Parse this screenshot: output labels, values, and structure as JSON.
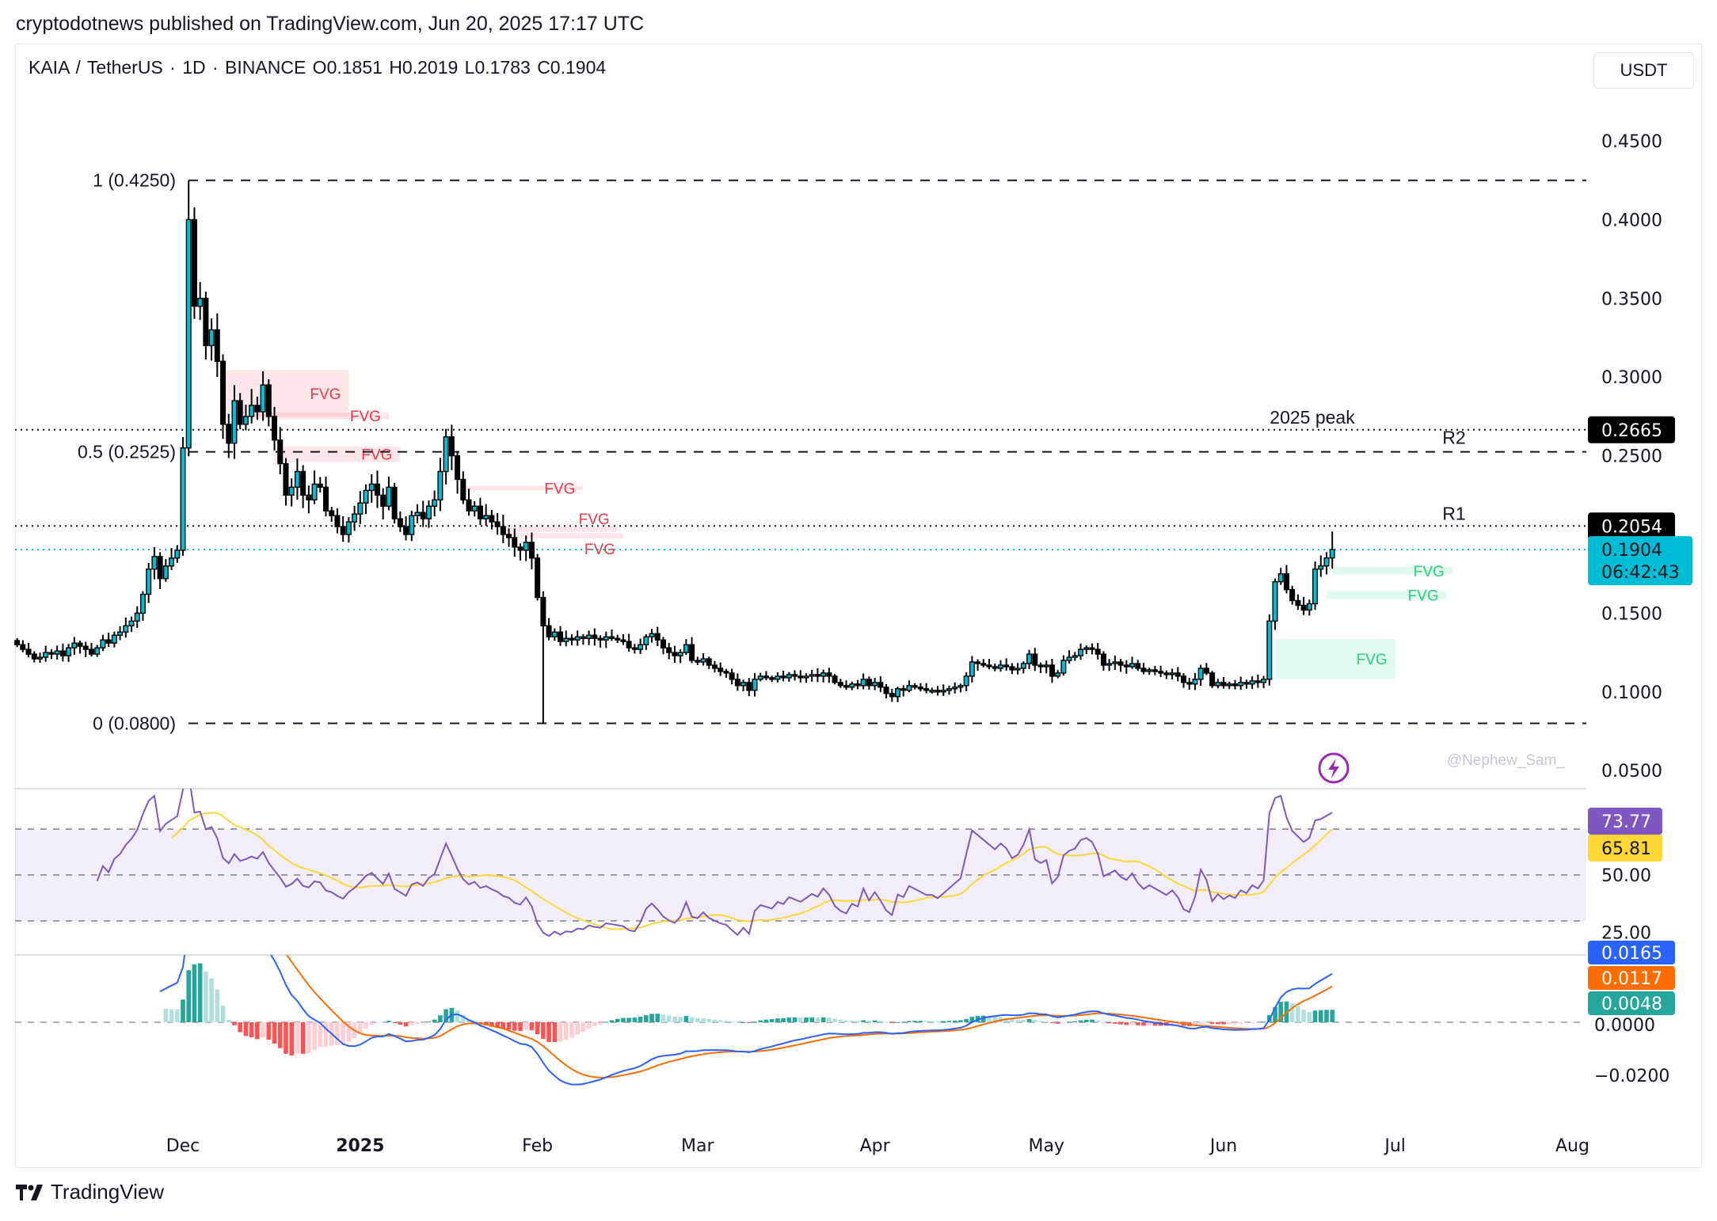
{
  "header": {
    "published": "cryptodotnews published on TradingView.com, Jun 20, 2025 17:17 UTC",
    "symbol": "KAIA / TetherUS · 1D · BINANCE  O0.1851  H0.2019  L0.1783  C0.1904",
    "currency_button": "USDT"
  },
  "footer": {
    "brand": "TradingView"
  },
  "watermark": "@Nephew_Sam_",
  "colors": {
    "up": "#00bcd4",
    "down": "#000000",
    "fvg_red": "#f23645",
    "fvg_green": "#22d37a",
    "rsi": "#7e57c2",
    "rsi_ma": "#fdd835",
    "macd": "#2962ff",
    "signal": "#ff6d00",
    "hist": "#26a69a"
  },
  "chart_data": {
    "type": "candlestick",
    "start_date": "2024-11-02",
    "closes": [
      0.13,
      0.127,
      0.124,
      0.121,
      0.122,
      0.125,
      0.124,
      0.126,
      0.123,
      0.128,
      0.131,
      0.129,
      0.127,
      0.124,
      0.128,
      0.133,
      0.131,
      0.136,
      0.138,
      0.142,
      0.145,
      0.15,
      0.162,
      0.178,
      0.186,
      0.172,
      0.18,
      0.185,
      0.19,
      0.255,
      0.4,
      0.345,
      0.35,
      0.32,
      0.33,
      0.31,
      0.27,
      0.258,
      0.285,
      0.27,
      0.275,
      0.282,
      0.278,
      0.295,
      0.275,
      0.26,
      0.245,
      0.225,
      0.23,
      0.24,
      0.225,
      0.222,
      0.232,
      0.23,
      0.215,
      0.212,
      0.205,
      0.2,
      0.208,
      0.213,
      0.22,
      0.228,
      0.232,
      0.225,
      0.218,
      0.23,
      0.21,
      0.205,
      0.2,
      0.212,
      0.214,
      0.21,
      0.218,
      0.222,
      0.24,
      0.262,
      0.25,
      0.235,
      0.222,
      0.215,
      0.218,
      0.21,
      0.212,
      0.208,
      0.205,
      0.2,
      0.198,
      0.192,
      0.19,
      0.195,
      0.185,
      0.16,
      0.142,
      0.135,
      0.138,
      0.132,
      0.134,
      0.133,
      0.135,
      0.134,
      0.136,
      0.134,
      0.133,
      0.135,
      0.134,
      0.133,
      0.132,
      0.128,
      0.127,
      0.13,
      0.135,
      0.137,
      0.133,
      0.128,
      0.125,
      0.123,
      0.125,
      0.13,
      0.12,
      0.119,
      0.121,
      0.117,
      0.115,
      0.113,
      0.112,
      0.108,
      0.104,
      0.106,
      0.101,
      0.108,
      0.11,
      0.109,
      0.108,
      0.11,
      0.109,
      0.111,
      0.11,
      0.109,
      0.11,
      0.111,
      0.11,
      0.112,
      0.11,
      0.106,
      0.104,
      0.103,
      0.105,
      0.104,
      0.108,
      0.104,
      0.106,
      0.103,
      0.099,
      0.097,
      0.102,
      0.101,
      0.104,
      0.103,
      0.102,
      0.101,
      0.101,
      0.1,
      0.101,
      0.102,
      0.103,
      0.104,
      0.11,
      0.119,
      0.118,
      0.117,
      0.116,
      0.115,
      0.117,
      0.116,
      0.114,
      0.115,
      0.118,
      0.124,
      0.117,
      0.116,
      0.117,
      0.11,
      0.112,
      0.12,
      0.122,
      0.123,
      0.127,
      0.128,
      0.127,
      0.124,
      0.117,
      0.118,
      0.119,
      0.117,
      0.116,
      0.118,
      0.115,
      0.113,
      0.114,
      0.113,
      0.112,
      0.111,
      0.112,
      0.11,
      0.106,
      0.105,
      0.108,
      0.115,
      0.112,
      0.104,
      0.106,
      0.104,
      0.105,
      0.104,
      0.106,
      0.105,
      0.107,
      0.106,
      0.108,
      0.145,
      0.17,
      0.175,
      0.165,
      0.158,
      0.155,
      0.152,
      0.156,
      0.178,
      0.18,
      0.1851,
      0.1904
    ],
    "last_candle": {
      "open": 0.1851,
      "high": 0.2019,
      "low": 0.1783,
      "close": 0.1904
    },
    "price_axis": {
      "ticks": [
        "0.4500",
        "0.4000",
        "0.3500",
        "0.3000",
        "0.2500",
        "0.1500",
        "0.1000",
        "0.0500"
      ],
      "range": [
        0.05,
        0.45
      ],
      "unit": "USDT"
    },
    "time_axis": {
      "ticks": [
        {
          "label": "Dec",
          "date": "2024-12-01",
          "bold": false
        },
        {
          "label": "2025",
          "date": "2025-01-01",
          "bold": true
        },
        {
          "label": "Feb",
          "date": "2025-02-01",
          "bold": false
        },
        {
          "label": "Mar",
          "date": "2025-03-01",
          "bold": false
        },
        {
          "label": "Apr",
          "date": "2025-04-01",
          "bold": false
        },
        {
          "label": "May",
          "date": "2025-05-01",
          "bold": false
        },
        {
          "label": "Jun",
          "date": "2025-06-01",
          "bold": false
        },
        {
          "label": "Jul",
          "date": "2025-07-01",
          "bold": false
        },
        {
          "label": "Aug",
          "date": "2025-08-01",
          "bold": false
        }
      ]
    },
    "fib_levels": [
      {
        "label": "1 (0.4250)",
        "price": 0.425
      },
      {
        "label": "0.5 (0.2525)",
        "price": 0.2525,
        "tag": "R2"
      },
      {
        "label": "0 (0.0800)",
        "price": 0.08
      }
    ],
    "horizontal_lines": [
      {
        "price": 0.2665,
        "label": "2025 peak",
        "badge": "0.2665"
      },
      {
        "price": 0.2054,
        "label": "R1",
        "badge": "0.2054"
      }
    ],
    "current_price": {
      "price": 0.1904,
      "badge": "0.1904",
      "countdown": "06:42:43"
    },
    "fvg_zones": [
      {
        "label": "FVG",
        "kind": "bearish",
        "from": "2024-12-08",
        "to": "2024-12-30",
        "top": 0.3046,
        "bottom": 0.2747
      },
      {
        "label": "FVG",
        "kind": "bearish",
        "from": "2024-12-13",
        "to": "2025-01-06",
        "top": 0.2775,
        "bottom": 0.2733
      },
      {
        "label": "FVG",
        "kind": "bearish",
        "from": "2024-12-17",
        "to": "2025-01-08",
        "top": 0.256,
        "bottom": 0.246
      },
      {
        "label": "FVG",
        "kind": "bearish",
        "from": "2025-01-19",
        "to": "2025-02-09",
        "top": 0.231,
        "bottom": 0.228
      },
      {
        "label": "FVG",
        "kind": "bearish",
        "from": "2025-01-26",
        "to": "2025-02-15",
        "top": 0.2051,
        "bottom": 0.2017
      },
      {
        "label": "FVG",
        "kind": "bearish",
        "from": "2025-01-27",
        "to": "2025-02-16",
        "top": 0.201,
        "bottom": 0.1975
      },
      {
        "label": "FVG",
        "kind": "bullish",
        "from": "2025-06-20",
        "to": "2025-07-11",
        "top": 0.1794,
        "bottom": 0.1745
      },
      {
        "label": "FVG",
        "kind": "bullish",
        "from": "2025-06-19",
        "to": "2025-07-10",
        "top": 0.164,
        "bottom": 0.159
      },
      {
        "label": "FVG",
        "kind": "bullish",
        "from": "2025-06-10",
        "to": "2025-07-01",
        "top": 0.1335,
        "bottom": 0.1084
      }
    ],
    "rsi": {
      "value": "73.77",
      "ma_value": "65.81",
      "ticks": [
        "50.00",
        "25.00"
      ],
      "bands": [
        70,
        50,
        30
      ]
    },
    "macd": {
      "macd_value": "0.0165",
      "signal_value": "0.0117",
      "hist_value": "0.0048",
      "ticks": [
        "0.0000",
        "−0.0200"
      ]
    }
  }
}
